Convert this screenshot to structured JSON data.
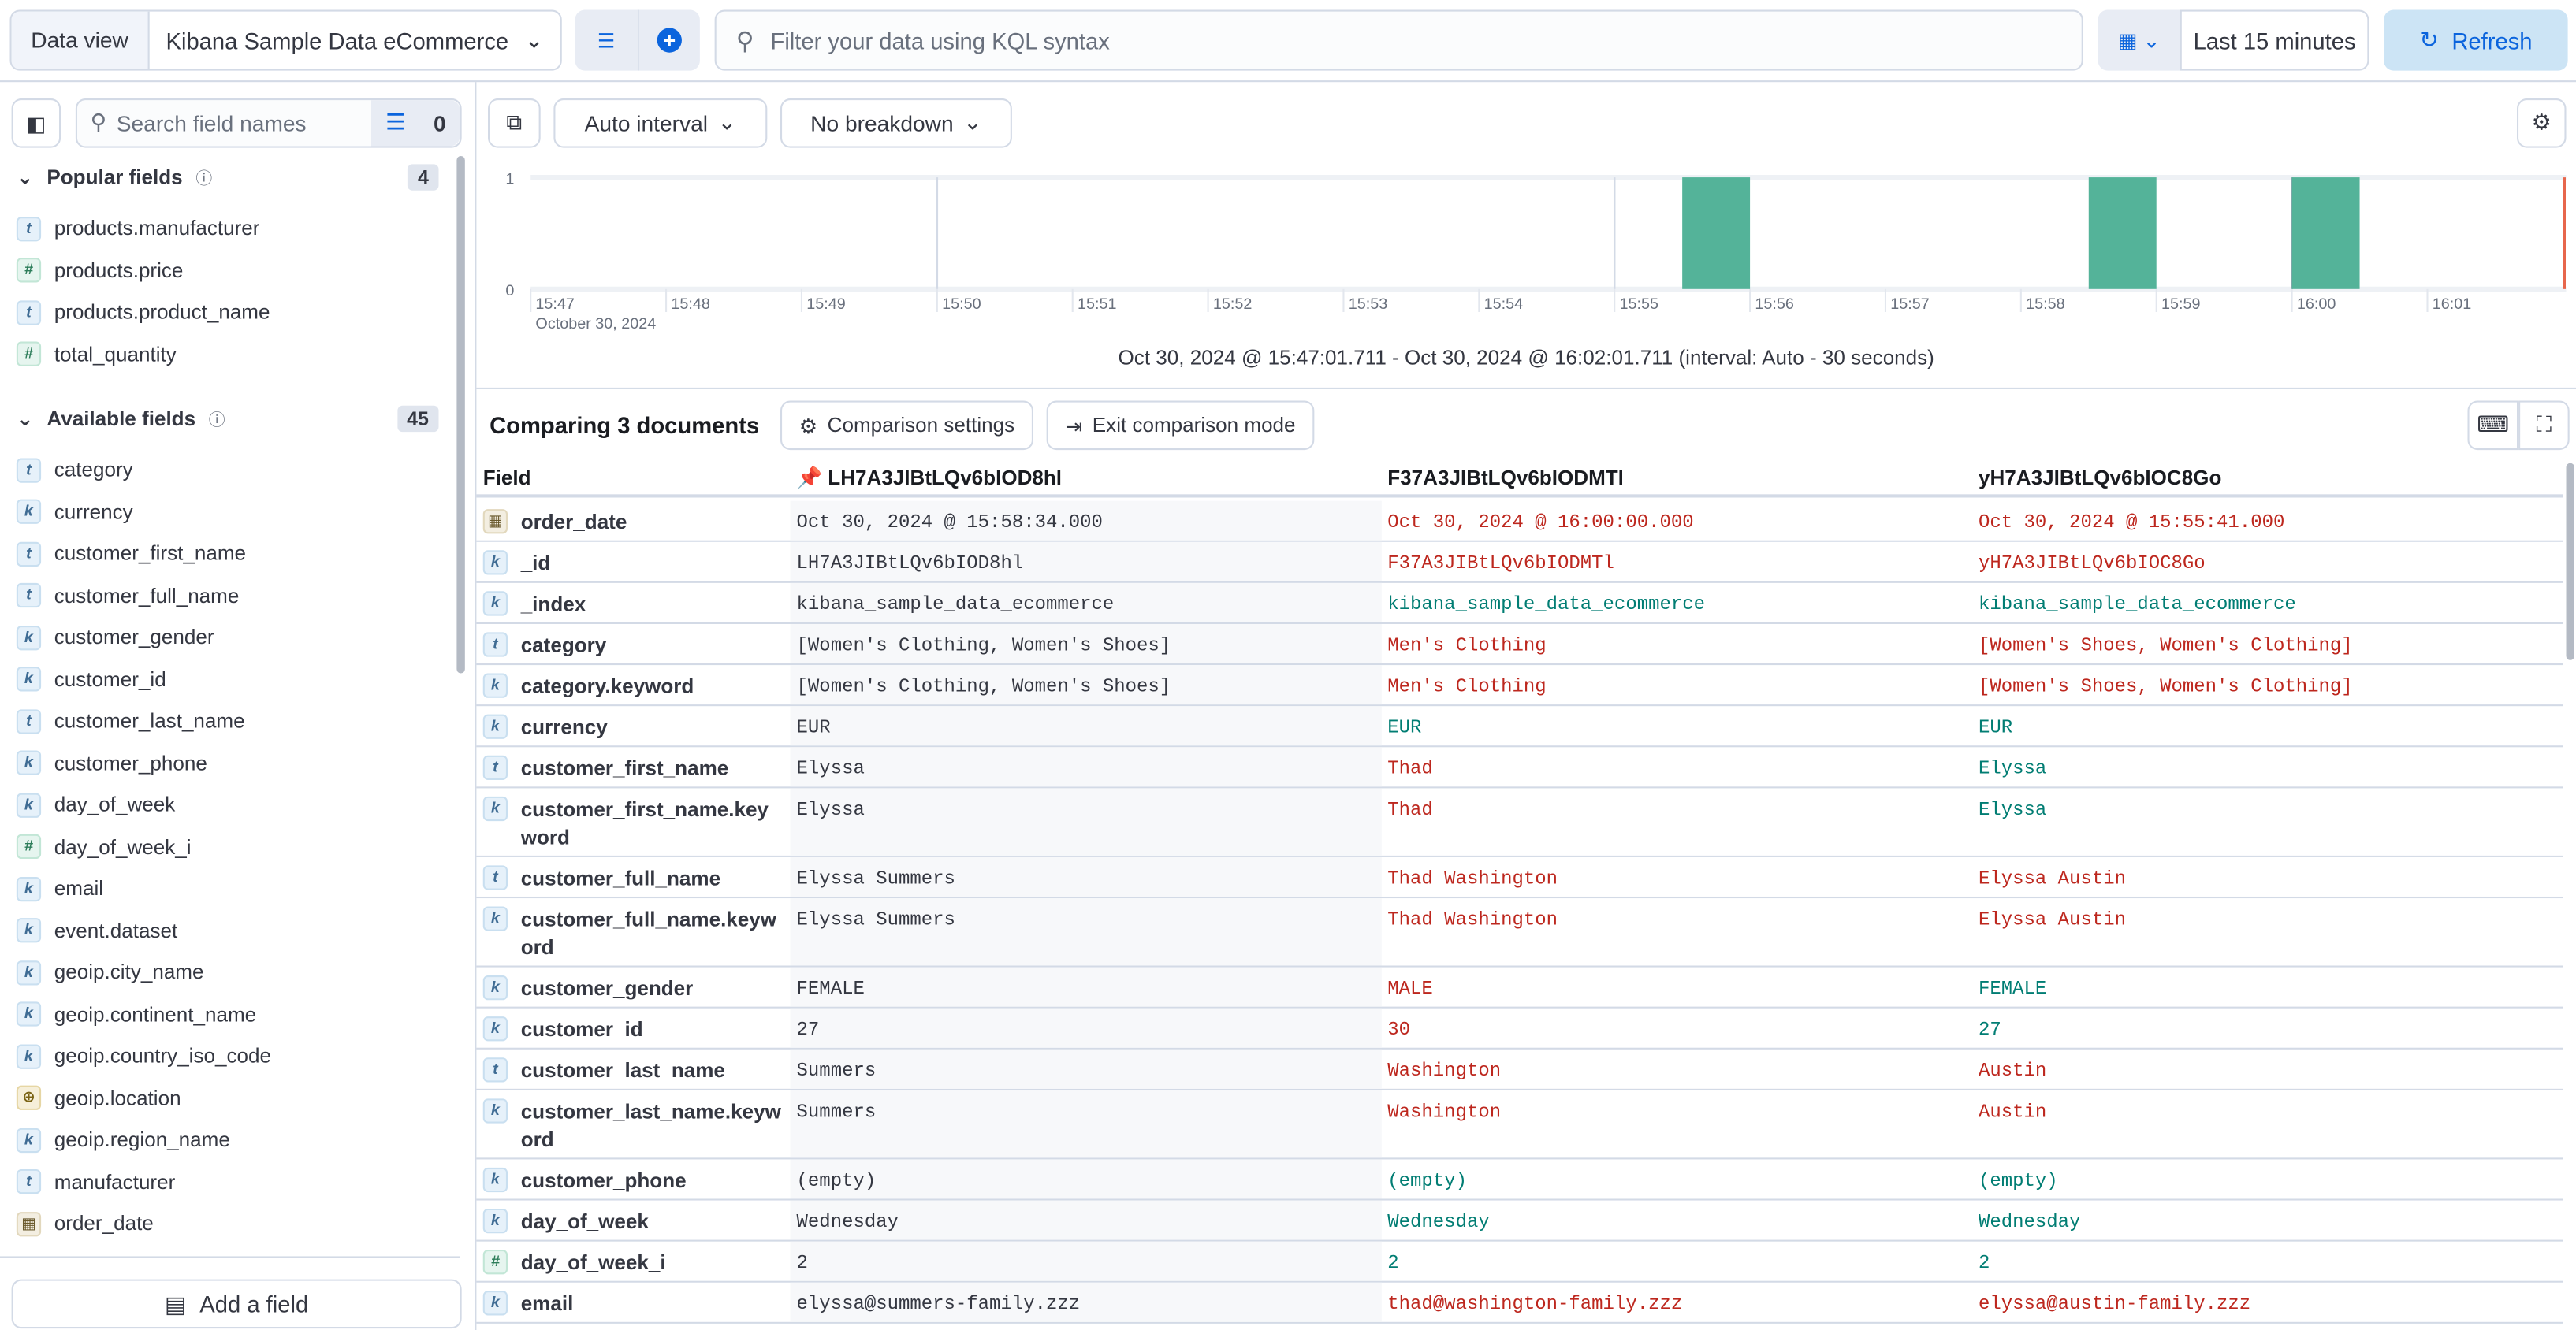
{
  "topbar": {
    "data_view_label": "Data view",
    "data_view_value": "Kibana Sample Data eCommerce",
    "kql_placeholder": "Filter your data using KQL syntax",
    "time_range": "Last 15 minutes",
    "refresh_label": "Refresh"
  },
  "sidebar": {
    "search_placeholder": "Search field names",
    "filter_count": "0",
    "popular": {
      "title": "Popular fields",
      "count": "4",
      "items": [
        {
          "type": "t",
          "name": "products.manufacturer"
        },
        {
          "type": "#",
          "name": "products.price"
        },
        {
          "type": "t",
          "name": "products.product_name"
        },
        {
          "type": "#",
          "name": "total_quantity"
        }
      ]
    },
    "available": {
      "title": "Available fields",
      "count": "45",
      "items": [
        {
          "type": "t",
          "name": "category"
        },
        {
          "type": "k",
          "name": "currency"
        },
        {
          "type": "t",
          "name": "customer_first_name"
        },
        {
          "type": "t",
          "name": "customer_full_name"
        },
        {
          "type": "k",
          "name": "customer_gender"
        },
        {
          "type": "k",
          "name": "customer_id"
        },
        {
          "type": "t",
          "name": "customer_last_name"
        },
        {
          "type": "k",
          "name": "customer_phone"
        },
        {
          "type": "k",
          "name": "day_of_week"
        },
        {
          "type": "#",
          "name": "day_of_week_i"
        },
        {
          "type": "k",
          "name": "email"
        },
        {
          "type": "k",
          "name": "event.dataset"
        },
        {
          "type": "k",
          "name": "geoip.city_name"
        },
        {
          "type": "k",
          "name": "geoip.continent_name"
        },
        {
          "type": "k",
          "name": "geoip.country_iso_code"
        },
        {
          "type": "geo",
          "name": "geoip.location"
        },
        {
          "type": "k",
          "name": "geoip.region_name"
        },
        {
          "type": "t",
          "name": "manufacturer"
        },
        {
          "type": "date",
          "name": "order_date"
        }
      ]
    },
    "add_field_label": "Add a field"
  },
  "main": {
    "interval_label": "Auto interval",
    "breakdown_label": "No breakdown",
    "range_text": "Oct 30, 2024 @ 15:47:01.711 - Oct 30, 2024 @ 16:02:01.711 (interval: Auto - 30 seconds)",
    "comparing_title": "Comparing 3 documents",
    "comparison_settings": "Comparison settings",
    "exit_comparison": "Exit comparison mode"
  },
  "chart_data": {
    "type": "bar",
    "x_domain": [
      "15:47",
      "16:02"
    ],
    "ylim": [
      0,
      1
    ],
    "y_ticks": [
      "0",
      "1"
    ],
    "x_ticks": [
      "15:47",
      "15:48",
      "15:49",
      "15:50",
      "15:51",
      "15:52",
      "15:53",
      "15:54",
      "15:55",
      "15:56",
      "15:57",
      "15:58",
      "15:59",
      "16:00",
      "16:01"
    ],
    "x_sublabel": "October 30, 2024",
    "bars": [
      {
        "start": "15:55:30",
        "count": 1
      },
      {
        "start": "15:58:30",
        "count": 1
      },
      {
        "start": "16:00:00",
        "count": 1
      }
    ],
    "bar_color": "#54b399",
    "now_marker_color": "#e7664c"
  },
  "table": {
    "headers": [
      "Field",
      "LH7A3JIBtLQv6bIOD8hl",
      "F37A3JIBtLQv6bIODMTl",
      "yH7A3JIBtLQv6bIOC8Go"
    ],
    "diff_colors": {
      "different": "#bd271e",
      "equal": "#017d73"
    },
    "rows": [
      {
        "type": "date",
        "field": "order_date",
        "v": [
          "Oct 30, 2024 @ 15:58:34.000",
          "Oct 30, 2024 @ 16:00:00.000",
          "Oct 30, 2024 @ 15:55:41.000"
        ],
        "d": [
          "red",
          "red"
        ]
      },
      {
        "type": "k",
        "field": "_id",
        "v": [
          "LH7A3JIBtLQv6bIOD8hl",
          "F37A3JIBtLQv6bIODMTl",
          "yH7A3JIBtLQv6bIOC8Go"
        ],
        "d": [
          "red",
          "red"
        ]
      },
      {
        "type": "k",
        "field": "_index",
        "v": [
          "kibana_sample_data_ecommerce",
          "kibana_sample_data_ecommerce",
          "kibana_sample_data_ecommerce"
        ],
        "d": [
          "grn",
          "grn"
        ]
      },
      {
        "type": "t",
        "field": "category",
        "v": [
          "[Women's Clothing, Women's Shoes]",
          "Men's Clothing",
          "[Women's Shoes, Women's Clothing]"
        ],
        "d": [
          "red",
          "red"
        ]
      },
      {
        "type": "k",
        "field": "category.keyword",
        "v": [
          "[Women's Clothing, Women's Shoes]",
          "Men's Clothing",
          "[Women's Shoes, Women's Clothing]"
        ],
        "d": [
          "red",
          "red"
        ]
      },
      {
        "type": "k",
        "field": "currency",
        "v": [
          "EUR",
          "EUR",
          "EUR"
        ],
        "d": [
          "grn",
          "grn"
        ]
      },
      {
        "type": "t",
        "field": "customer_first_name",
        "v": [
          "Elyssa",
          "Thad",
          "Elyssa"
        ],
        "d": [
          "red",
          "grn"
        ]
      },
      {
        "type": "k",
        "field": "customer_first_name.keyword",
        "v": [
          "Elyssa",
          "Thad",
          "Elyssa"
        ],
        "d": [
          "red",
          "grn"
        ]
      },
      {
        "type": "t",
        "field": "customer_full_name",
        "v": [
          "Elyssa Summers",
          "Thad Washington",
          "Elyssa Austin"
        ],
        "d": [
          "red",
          "red"
        ]
      },
      {
        "type": "k",
        "field": "customer_full_name.keyword",
        "v": [
          "Elyssa Summers",
          "Thad Washington",
          "Elyssa Austin"
        ],
        "d": [
          "red",
          "red"
        ]
      },
      {
        "type": "k",
        "field": "customer_gender",
        "v": [
          "FEMALE",
          "MALE",
          "FEMALE"
        ],
        "d": [
          "red",
          "grn"
        ]
      },
      {
        "type": "k",
        "field": "customer_id",
        "v": [
          "27",
          "30",
          "27"
        ],
        "d": [
          "red",
          "grn"
        ]
      },
      {
        "type": "t",
        "field": "customer_last_name",
        "v": [
          "Summers",
          "Washington",
          "Austin"
        ],
        "d": [
          "red",
          "red"
        ]
      },
      {
        "type": "k",
        "field": "customer_last_name.keyword",
        "v": [
          "Summers",
          "Washington",
          "Austin"
        ],
        "d": [
          "red",
          "red"
        ]
      },
      {
        "type": "k",
        "field": "customer_phone",
        "v": [
          "(empty)",
          "(empty)",
          "(empty)"
        ],
        "d": [
          "grn",
          "grn"
        ]
      },
      {
        "type": "k",
        "field": "day_of_week",
        "v": [
          "Wednesday",
          "Wednesday",
          "Wednesday"
        ],
        "d": [
          "grn",
          "grn"
        ]
      },
      {
        "type": "#",
        "field": "day_of_week_i",
        "v": [
          "2",
          "2",
          "2"
        ],
        "d": [
          "grn",
          "grn"
        ]
      },
      {
        "type": "k",
        "field": "email",
        "v": [
          "elyssa@summers-family.zzz",
          "thad@washington-family.zzz",
          "elyssa@austin-family.zzz"
        ],
        "d": [
          "red",
          "red"
        ]
      }
    ]
  }
}
